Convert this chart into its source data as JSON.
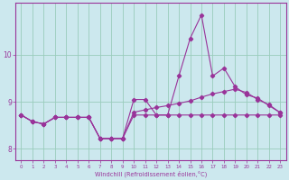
{
  "xlabel": "Windchill (Refroidissement éolien,°C)",
  "bg_color": "#cce8ee",
  "line_color": "#993399",
  "grid_color": "#99ccbb",
  "xlim": [
    -0.5,
    23.5
  ],
  "ylim": [
    7.75,
    11.1
  ],
  "yticks": [
    8,
    9,
    10
  ],
  "xticks": [
    0,
    1,
    2,
    3,
    4,
    5,
    6,
    7,
    8,
    9,
    10,
    11,
    12,
    13,
    14,
    15,
    16,
    17,
    18,
    19,
    20,
    21,
    22,
    23
  ],
  "series1_x": [
    0,
    1,
    2,
    3,
    4,
    5,
    6,
    7,
    8,
    9,
    10,
    11,
    12,
    13,
    14,
    15,
    16,
    17,
    18,
    19,
    20,
    21,
    22,
    23
  ],
  "series1_y": [
    8.72,
    8.58,
    8.53,
    8.67,
    8.67,
    8.67,
    8.67,
    8.22,
    8.22,
    8.22,
    8.72,
    8.72,
    8.72,
    8.72,
    8.72,
    8.72,
    8.72,
    8.72,
    8.72,
    8.72,
    8.72,
    8.72,
    8.72,
    8.72
  ],
  "series2_x": [
    0,
    1,
    2,
    3,
    4,
    5,
    6,
    7,
    8,
    9,
    10,
    11,
    12,
    13,
    14,
    15,
    16,
    17,
    18,
    19,
    20,
    21,
    22,
    23
  ],
  "series2_y": [
    8.72,
    8.58,
    8.53,
    8.67,
    8.67,
    8.67,
    8.67,
    8.22,
    8.22,
    8.22,
    9.05,
    9.05,
    8.72,
    8.72,
    9.55,
    10.35,
    10.85,
    9.55,
    9.72,
    9.32,
    9.15,
    9.08,
    8.92,
    8.77
  ],
  "series3_x": [
    0,
    1,
    2,
    3,
    4,
    5,
    6,
    7,
    8,
    9,
    10,
    11,
    12,
    13,
    14,
    15,
    16,
    17,
    18,
    19,
    20,
    21,
    22,
    23
  ],
  "series3_y": [
    8.72,
    8.58,
    8.53,
    8.67,
    8.67,
    8.67,
    8.67,
    8.22,
    8.22,
    8.22,
    8.78,
    8.83,
    8.88,
    8.92,
    8.97,
    9.02,
    9.1,
    9.17,
    9.22,
    9.27,
    9.2,
    9.05,
    8.94,
    8.77
  ]
}
